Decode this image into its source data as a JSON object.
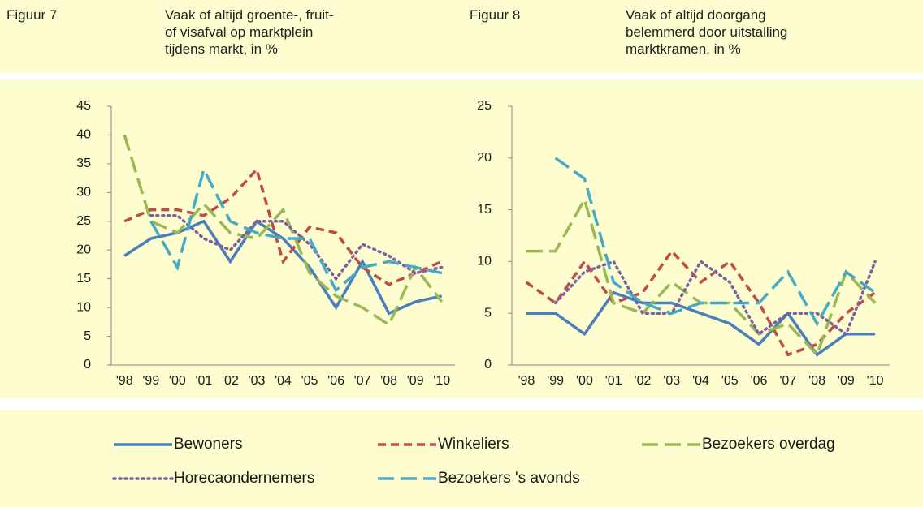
{
  "chart_data": [
    {
      "type": "line",
      "label": "Figuur 7",
      "title": "Vaak of altijd groente-, fruit-\nof visafval op marktplein\ntijdens markt, in %",
      "categories": [
        "'98",
        "'99",
        "'00",
        "'01",
        "'02",
        "'03",
        "'04",
        "'05",
        "'06",
        "'07",
        "'08",
        "'09",
        "'10"
      ],
      "ylim": [
        0,
        45
      ],
      "yticks": [
        0,
        5,
        10,
        15,
        20,
        25,
        30,
        35,
        40,
        45
      ],
      "series": [
        {
          "name": "Bewoners",
          "color": "#4a7ebb",
          "style": "solid",
          "values": [
            19,
            22,
            23,
            25,
            18,
            25,
            22,
            17,
            10,
            18,
            9,
            11,
            12
          ]
        },
        {
          "name": "Winkeliers",
          "color": "#be4b48",
          "style": "dash",
          "values": [
            25,
            27,
            27,
            26,
            29,
            34,
            18,
            24,
            23,
            17,
            14,
            16,
            18
          ]
        },
        {
          "name": "Bezoekers overdag",
          "color": "#98b954",
          "style": "longdash",
          "values": [
            40,
            25,
            23,
            28,
            23,
            22,
            27,
            16,
            12,
            10,
            7,
            17,
            11
          ]
        },
        {
          "name": "Horecaondernemers",
          "color": "#7d60a0",
          "style": "dot",
          "values": [
            null,
            26,
            26,
            22,
            20,
            25,
            25,
            21,
            15,
            21,
            19,
            16,
            17
          ]
        },
        {
          "name": "Bezoekers 's avonds",
          "color": "#46aac5",
          "style": "longdash",
          "values": [
            null,
            25,
            17,
            34,
            25,
            23,
            22,
            22,
            13,
            17,
            18,
            17,
            16
          ]
        }
      ]
    },
    {
      "type": "line",
      "label": "Figuur 8",
      "title": "Vaak of altijd doorgang\nbelemmerd door uitstalling\nmarktkramen, in %",
      "categories": [
        "'98",
        "'99",
        "'00",
        "'01",
        "'02",
        "'03",
        "'04",
        "'05",
        "'06",
        "'07",
        "'08",
        "'09",
        "'10"
      ],
      "ylim": [
        0,
        25
      ],
      "yticks": [
        0,
        5,
        10,
        15,
        20,
        25
      ],
      "series": [
        {
          "name": "Bewoners",
          "color": "#4a7ebb",
          "style": "solid",
          "values": [
            5,
            5,
            3,
            7,
            6,
            6,
            5,
            4,
            2,
            5,
            1,
            3,
            3
          ]
        },
        {
          "name": "Winkeliers",
          "color": "#be4b48",
          "style": "dash",
          "values": [
            8,
            6,
            10,
            6,
            7,
            11,
            8,
            10,
            6,
            1,
            2,
            5,
            7
          ]
        },
        {
          "name": "Bezoekers overdag",
          "color": "#98b954",
          "style": "longdash",
          "values": [
            11,
            11,
            16,
            6,
            5,
            8,
            6,
            6,
            3,
            4,
            1,
            9,
            6
          ]
        },
        {
          "name": "Horecaondernemers",
          "color": "#7d60a0",
          "style": "dot",
          "values": [
            null,
            6,
            9,
            10,
            5,
            5,
            10,
            8,
            3,
            5,
            5,
            3,
            10
          ]
        },
        {
          "name": "Bezoekers 's avonds",
          "color": "#46aac5",
          "style": "longdash",
          "values": [
            null,
            20,
            18,
            8,
            6,
            5,
            6,
            6,
            6,
            9,
            4,
            9,
            7
          ]
        }
      ]
    }
  ]
}
